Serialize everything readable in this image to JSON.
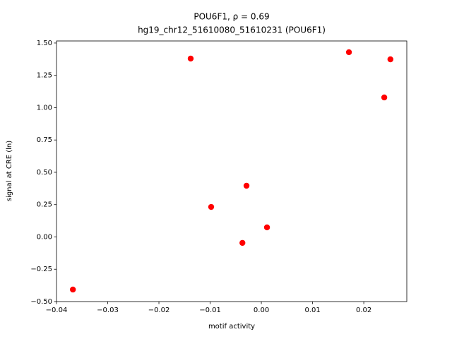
{
  "chart_data": {
    "type": "scatter",
    "title": "POU6F1, ρ = 0.69",
    "subtitle": "hg19_chr12_51610080_51610231 (POU6F1)",
    "x_label": "motif activity",
    "y_label": "signal at CRE (ln)",
    "color": "#ff0000",
    "x": [
      -0.0368,
      -0.0138,
      -0.0098,
      -0.0029,
      -0.0037,
      0.0011,
      0.0171,
      0.024,
      0.0252
    ],
    "values": [
      -0.407,
      1.38,
      0.232,
      0.396,
      -0.046,
      0.074,
      1.429,
      1.079,
      1.374
    ],
    "xlim": [
      -0.04,
      0.0284
    ],
    "ylim": [
      -0.5,
      1.516
    ],
    "xticks": [
      {
        "value": -0.04,
        "label": "−0.04"
      },
      {
        "value": -0.03,
        "label": "−0.03"
      },
      {
        "value": -0.02,
        "label": "−0.02"
      },
      {
        "value": -0.01,
        "label": "−0.01"
      },
      {
        "value": 0,
        "label": "0.00"
      },
      0.01,
      0.02
    ],
    "yticks": [
      {
        "value": -0.5,
        "label": "−0.50"
      },
      {
        "value": -0.25,
        "label": "−0.25"
      },
      {
        "value": 0,
        "label": "0.00"
      },
      0.25,
      {
        "value": 0.5,
        "label": "0.50"
      },
      0.75,
      {
        "value": 1,
        "label": "1.00"
      },
      1.25,
      {
        "value": 1.5,
        "label": "1.50"
      }
    ]
  }
}
